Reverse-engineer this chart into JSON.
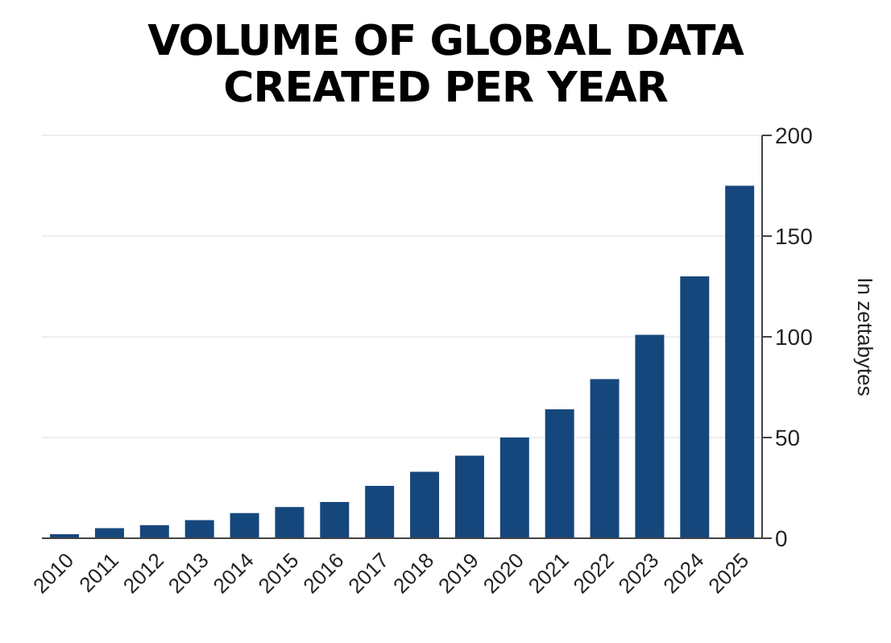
{
  "chart_data": {
    "type": "bar",
    "title": "VOLUME OF GLOBAL DATA\nCREATED PER YEAR",
    "ylabel": "In zettabytes",
    "categories": [
      "2010",
      "2011",
      "2012",
      "2013",
      "2014",
      "2015",
      "2016",
      "2017",
      "2018",
      "2019",
      "2020",
      "2021",
      "2022",
      "2023",
      "2024",
      "2025"
    ],
    "values": [
      2,
      5,
      6.5,
      9,
      12.5,
      15.5,
      18,
      26,
      33,
      41,
      50,
      64,
      79,
      101,
      130,
      175
    ],
    "color": "#16477c",
    "ylim": [
      0,
      200
    ],
    "yticks": [
      0,
      50,
      100,
      150,
      200
    ],
    "grid": "y"
  }
}
